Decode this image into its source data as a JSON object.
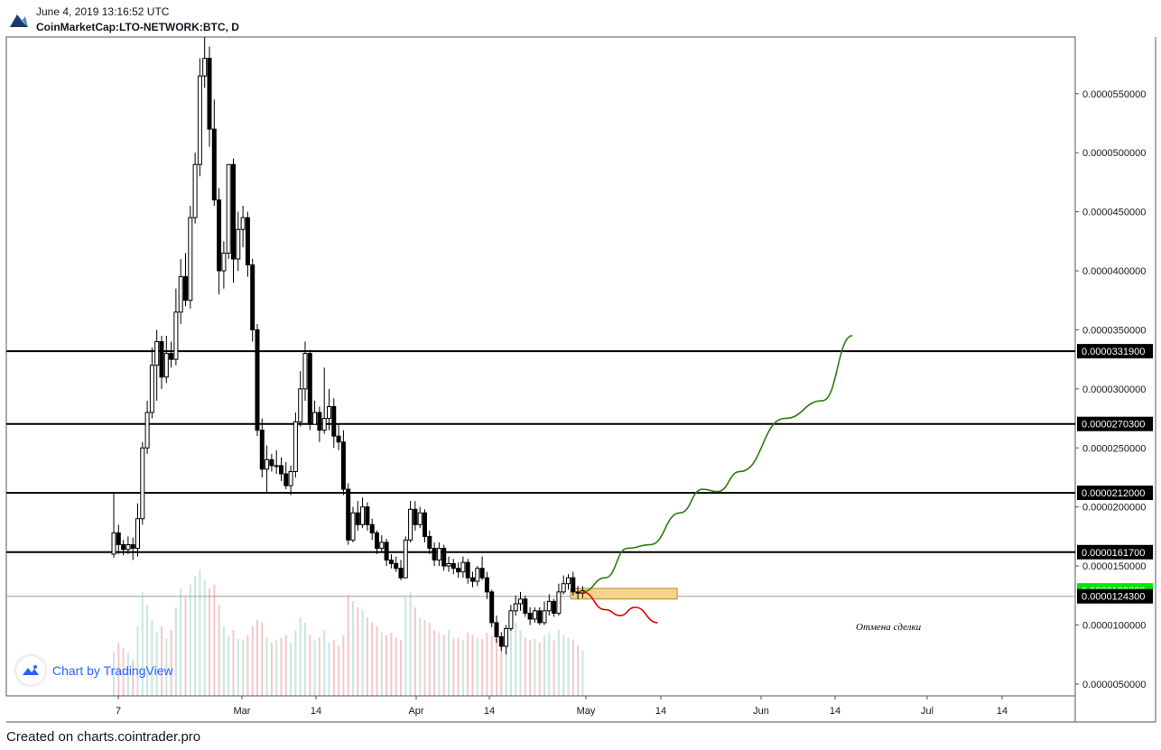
{
  "header": {
    "timestamp": "June 4, 2019 13:16:52 UTC",
    "symbol": "CoinMarketCap:LTO-NETWORK:BTC, D"
  },
  "footer": {
    "credit": "Created on charts.cointrader.pro"
  },
  "brand": {
    "label": "Chart by TradingView"
  },
  "colors": {
    "up": "#ffffff",
    "down": "#000000",
    "volume_up": "#c8e6df",
    "volume_down": "#f7c7c7",
    "bullish_path": "#2e7d12",
    "bearish_path": "#e00000",
    "zone": "#f5d48a",
    "last_price": "#00e600"
  },
  "chart_data": {
    "type": "candlestick",
    "title": "CoinMarketCap:LTO-NETWORK:BTC, D",
    "ylim": [
      4e-06,
      5.98e-05
    ],
    "x_tick_labels": [
      "7",
      "Mar",
      "14",
      "Apr",
      "14",
      "May",
      "14",
      "Jun",
      "14",
      "Jul",
      "14"
    ],
    "y_tick_labels": [
      "0.0000550000",
      "0.0000500000",
      "0.0000450000",
      "0.0000400000",
      "0.0000350000",
      "0.0000300000",
      "0.0000250000",
      "0.0000200000",
      "0.0000150000",
      "0.0000100000",
      "0.0000050000"
    ],
    "y_ticks": [
      5.5e-05,
      5e-05,
      4.5e-05,
      4e-05,
      3.5e-05,
      3e-05,
      2.5e-05,
      2e-05,
      1.5e-05,
      1e-05,
      5e-06
    ],
    "horizontal_levels": [
      {
        "value": 3.319e-05,
        "label": "0.0000331900"
      },
      {
        "value": 2.703e-05,
        "label": "0.0000270300"
      },
      {
        "value": 2.12e-05,
        "label": "0.0000212000"
      },
      {
        "value": 1.617e-05,
        "label": "0.0000161700"
      }
    ],
    "last_price": {
      "value": 1.293e-05,
      "label": "0.0000129300"
    },
    "level_124": {
      "value": 1.243e-05,
      "label": "0.0000124300"
    },
    "annotation": "Отмена сделки",
    "zone": {
      "from": 1.22e-05,
      "to": 1.31e-05
    },
    "candles": [
      [
        1.6e-05,
        1.78e-05,
        2.12e-05,
        1.57e-05
      ],
      [
        1.78e-05,
        1.68e-05,
        1.85e-05,
        1.6e-05
      ],
      [
        1.68e-05,
        1.64e-05,
        1.72e-05,
        1.59e-05
      ],
      [
        1.64e-05,
        1.68e-05,
        1.75e-05,
        1.6e-05
      ],
      [
        1.68e-05,
        1.65e-05,
        1.74e-05,
        1.55e-05
      ],
      [
        1.65e-05,
        1.9e-05,
        2.03e-05,
        1.58e-05
      ],
      [
        1.9e-05,
        2.5e-05,
        2.55e-05,
        1.85e-05
      ],
      [
        2.5e-05,
        2.8e-05,
        2.9e-05,
        2.45e-05
      ],
      [
        2.8e-05,
        3.2e-05,
        3.35e-05,
        2.75e-05
      ],
      [
        3.2e-05,
        3.4e-05,
        3.5e-05,
        2.9e-05
      ],
      [
        3.4e-05,
        3.1e-05,
        3.45e-05,
        3e-05
      ],
      [
        3.1e-05,
        3.3e-05,
        3.45e-05,
        3.05e-05
      ],
      [
        3.3e-05,
        3.25e-05,
        3.4e-05,
        3.18e-05
      ],
      [
        3.25e-05,
        3.65e-05,
        3.85e-05,
        3.2e-05
      ],
      [
        3.65e-05,
        3.95e-05,
        4.1e-05,
        3.55e-05
      ],
      [
        3.95e-05,
        3.75e-05,
        4.15e-05,
        3.7e-05
      ],
      [
        3.75e-05,
        4.45e-05,
        4.55e-05,
        3.68e-05
      ],
      [
        4.45e-05,
        4.9e-05,
        5e-05,
        4.4e-05
      ],
      [
        4.9e-05,
        5.65e-05,
        5.8e-05,
        4.8e-05
      ],
      [
        5.65e-05,
        5.8e-05,
        5.98e-05,
        5.55e-05
      ],
      [
        5.8e-05,
        5.2e-05,
        5.9e-05,
        5.05e-05
      ],
      [
        5.2e-05,
        4.6e-05,
        5.45e-05,
        4.55e-05
      ],
      [
        4.6e-05,
        4e-05,
        4.7e-05,
        3.8e-05
      ],
      [
        4e-05,
        4.15e-05,
        4.25e-05,
        3.85e-05
      ],
      [
        4.15e-05,
        4.9e-05,
        4.9e-05,
        4.1e-05
      ],
      [
        4.9e-05,
        4.1e-05,
        4.95e-05,
        3.9e-05
      ],
      [
        4.1e-05,
        4.35e-05,
        4.5e-05,
        4e-05
      ],
      [
        4.35e-05,
        4.45e-05,
        4.55e-05,
        4.2e-05
      ],
      [
        4.45e-05,
        4.05e-05,
        4.5e-05,
        3.95e-05
      ],
      [
        4.05e-05,
        3.5e-05,
        4.1e-05,
        3.4e-05
      ],
      [
        3.5e-05,
        2.65e-05,
        3.55e-05,
        2.6e-05
      ],
      [
        2.65e-05,
        2.32e-05,
        2.75e-05,
        2.25e-05
      ],
      [
        2.32e-05,
        2.4e-05,
        2.52e-05,
        2.12e-05
      ],
      [
        2.4e-05,
        2.35e-05,
        2.45e-05,
        2.3e-05
      ],
      [
        2.35e-05,
        2.35e-05,
        2.48e-05,
        2.28e-05
      ],
      [
        2.35e-05,
        2.28e-05,
        2.42e-05,
        2.22e-05
      ],
      [
        2.28e-05,
        2.18e-05,
        2.38e-05,
        2.15e-05
      ],
      [
        2.18e-05,
        2.3e-05,
        2.35e-05,
        2.1e-05
      ],
      [
        2.3e-05,
        2.72e-05,
        2.8e-05,
        2.25e-05
      ],
      [
        2.72e-05,
        3e-05,
        3.15e-05,
        2.68e-05
      ],
      [
        3e-05,
        3.3e-05,
        3.4e-05,
        2.9e-05
      ],
      [
        3.3e-05,
        2.7e-05,
        3.33e-05,
        2.65e-05
      ],
      [
        2.7e-05,
        2.8e-05,
        2.9e-05,
        2.7e-05
      ],
      [
        2.8e-05,
        2.65e-05,
        2.85e-05,
        2.55e-05
      ],
      [
        2.65e-05,
        2.75e-05,
        3.18e-05,
        2.62e-05
      ],
      [
        2.75e-05,
        2.85e-05,
        3e-05,
        2.65e-05
      ],
      [
        2.85e-05,
        2.6e-05,
        2.92e-05,
        2.5e-05
      ],
      [
        2.6e-05,
        2.55e-05,
        2.7e-05,
        2.48e-05
      ],
      [
        2.55e-05,
        2.15e-05,
        2.65e-05,
        2.1e-05
      ],
      [
        2.15e-05,
        1.72e-05,
        2.2e-05,
        1.68e-05
      ],
      [
        1.72e-05,
        1.95e-05,
        2e-05,
        1.7e-05
      ],
      [
        1.95e-05,
        1.85e-05,
        2.05e-05,
        1.8e-05
      ],
      [
        1.85e-05,
        2e-05,
        2.08e-05,
        1.82e-05
      ],
      [
        2e-05,
        1.85e-05,
        2.04e-05,
        1.8e-05
      ],
      [
        1.85e-05,
        1.78e-05,
        1.9e-05,
        1.72e-05
      ],
      [
        1.78e-05,
        1.65e-05,
        1.8e-05,
        1.6e-05
      ],
      [
        1.65e-05,
        1.7e-05,
        1.76e-05,
        1.62e-05
      ],
      [
        1.7e-05,
        1.55e-05,
        1.73e-05,
        1.5e-05
      ],
      [
        1.55e-05,
        1.52e-05,
        1.6e-05,
        1.48e-05
      ],
      [
        1.52e-05,
        1.48e-05,
        1.58e-05,
        1.45e-05
      ],
      [
        1.48e-05,
        1.4e-05,
        1.55e-05,
        1.38e-05
      ],
      [
        1.4e-05,
        1.72e-05,
        1.75e-05,
        1.4e-05
      ],
      [
        1.72e-05,
        1.98e-05,
        2.05e-05,
        1.7e-05
      ],
      [
        1.98e-05,
        1.85e-05,
        2.05e-05,
        1.8e-05
      ],
      [
        1.85e-05,
        1.95e-05,
        2e-05,
        1.82e-05
      ],
      [
        1.95e-05,
        1.75e-05,
        1.98e-05,
        1.7e-05
      ],
      [
        1.75e-05,
        1.65e-05,
        1.8e-05,
        1.6e-05
      ],
      [
        1.65e-05,
        1.55e-05,
        1.7e-05,
        1.5e-05
      ],
      [
        1.55e-05,
        1.65e-05,
        1.7e-05,
        1.5e-05
      ],
      [
        1.65e-05,
        1.5e-05,
        1.68e-05,
        1.46e-05
      ],
      [
        1.5e-05,
        1.52e-05,
        1.58e-05,
        1.45e-05
      ],
      [
        1.52e-05,
        1.48e-05,
        1.56e-05,
        1.43e-05
      ],
      [
        1.48e-05,
        1.45e-05,
        1.53e-05,
        1.4e-05
      ],
      [
        1.45e-05,
        1.53e-05,
        1.58e-05,
        1.4e-05
      ],
      [
        1.53e-05,
        1.4e-05,
        1.56e-05,
        1.35e-05
      ],
      [
        1.4e-05,
        1.37e-05,
        1.45e-05,
        1.32e-05
      ],
      [
        1.37e-05,
        1.48e-05,
        1.5e-05,
        1.33e-05
      ],
      [
        1.48e-05,
        1.4e-05,
        1.58e-05,
        1.38e-05
      ],
      [
        1.4e-05,
        1.28e-05,
        1.45e-05,
        1.22e-05
      ],
      [
        1.28e-05,
        1.02e-05,
        1.3e-05,
        9.8e-06
      ],
      [
        1.02e-05,
        9e-06,
        1.08e-05,
        8.5e-06
      ],
      [
        9e-06,
        8.2e-06,
        9.4e-06,
        7.8e-06
      ],
      [
        8.2e-06,
        9.7e-06,
        1e-05,
        7.5e-06
      ],
      [
        9.7e-06,
        1.12e-05,
        1.17e-05,
        9.5e-06
      ],
      [
        1.12e-05,
        1.18e-05,
        1.25e-05,
        1.08e-05
      ],
      [
        1.18e-05,
        1.22e-05,
        1.28e-05,
        1.12e-05
      ],
      [
        1.22e-05,
        1.1e-05,
        1.25e-05,
        1.07e-05
      ],
      [
        1.1e-05,
        1.05e-05,
        1.15e-05,
        1e-05
      ],
      [
        1.05e-05,
        1.12e-05,
        1.15e-05,
        1.02e-05
      ],
      [
        1.12e-05,
        1.02e-05,
        1.15e-05,
        1e-05
      ],
      [
        1.02e-05,
        1.12e-05,
        1.2e-05,
        1e-05
      ],
      [
        1.12e-05,
        1.2e-05,
        1.26e-05,
        1.08e-05
      ],
      [
        1.2e-05,
        1.1e-05,
        1.22e-05,
        1.07e-05
      ],
      [
        1.1e-05,
        1.28e-05,
        1.35e-05,
        1.08e-05
      ],
      [
        1.28e-05,
        1.35e-05,
        1.42e-05,
        1.26e-05
      ],
      [
        1.35e-05,
        1.4e-05,
        1.43e-05,
        1.3e-05
      ],
      [
        1.4e-05,
        1.28e-05,
        1.45e-05,
        1.25e-05
      ],
      [
        1.28e-05,
        1.27e-05,
        1.33e-05,
        1.22e-05
      ],
      [
        1.27e-05,
        1.29e-05,
        1.33e-05,
        1.23e-05
      ]
    ],
    "volumes": [
      0.35,
      0.42,
      0.38,
      0.34,
      0.28,
      0.55,
      0.82,
      0.72,
      0.6,
      0.5,
      0.55,
      0.45,
      0.52,
      0.7,
      0.85,
      0.78,
      0.88,
      0.95,
      1.0,
      0.92,
      0.85,
      0.88,
      0.72,
      0.55,
      0.48,
      0.52,
      0.45,
      0.44,
      0.48,
      0.55,
      0.6,
      0.58,
      0.46,
      0.42,
      0.44,
      0.46,
      0.48,
      0.42,
      0.52,
      0.62,
      0.58,
      0.48,
      0.44,
      0.46,
      0.52,
      0.42,
      0.44,
      0.4,
      0.48,
      0.8,
      0.75,
      0.7,
      0.68,
      0.62,
      0.58,
      0.55,
      0.5,
      0.48,
      0.5,
      0.46,
      0.44,
      0.78,
      0.82,
      0.7,
      0.62,
      0.6,
      0.58,
      0.52,
      0.5,
      0.48,
      0.52,
      0.45,
      0.46,
      0.44,
      0.5,
      0.48,
      0.46,
      0.45,
      0.5,
      0.48,
      0.45,
      0.42,
      0.4,
      0.55,
      0.58,
      0.52,
      0.46,
      0.44,
      0.45,
      0.42,
      0.48,
      0.5,
      0.44,
      0.52,
      0.48,
      0.46,
      0.44,
      0.4,
      0.36
    ],
    "projection_up": [
      [
        0,
        1.28e-05
      ],
      [
        3,
        1.4e-05
      ],
      [
        6,
        1.65e-05
      ],
      [
        9,
        1.68e-05
      ],
      [
        13,
        1.95e-05
      ],
      [
        16,
        2.15e-05
      ],
      [
        18,
        2.13e-05
      ],
      [
        21,
        2.3e-05
      ],
      [
        27,
        2.75e-05
      ],
      [
        32,
        2.9e-05
      ],
      [
        36,
        3.45e-05
      ]
    ],
    "projection_down": [
      [
        0,
        1.28e-05
      ],
      [
        3,
        1.13e-05
      ],
      [
        5,
        1.08e-05
      ],
      [
        7,
        1.15e-05
      ],
      [
        10,
        1.02e-05
      ]
    ]
  }
}
